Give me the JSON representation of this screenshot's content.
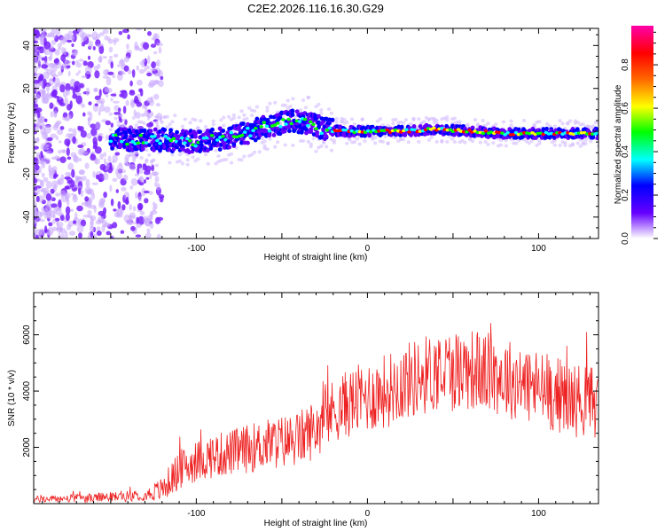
{
  "title": "C2E2.2026.116.16.30.G29",
  "chart_data": [
    {
      "type": "heatmap",
      "name": "spectrogram",
      "xlabel": "Height of straight line (km)",
      "ylabel": "Frequency (Hz)",
      "xlim": [
        -195,
        135
      ],
      "ylim": [
        -50,
        48
      ],
      "x_ticks": [
        -100,
        0,
        100
      ],
      "x_tick_labels": [
        "-100",
        "0",
        "100"
      ],
      "y_ticks": [
        -40,
        -20,
        0,
        20,
        40
      ],
      "y_tick_labels": [
        "-40",
        "-20",
        "0",
        "20",
        "40"
      ],
      "ridge": {
        "x": [
          -160,
          -140,
          -120,
          -100,
          -80,
          -60,
          -45,
          -35,
          -25,
          -15,
          0,
          20,
          40,
          60,
          80,
          100,
          120,
          135
        ],
        "y": [
          -3,
          -4,
          -4,
          -5,
          -3,
          2,
          5,
          4,
          1,
          0,
          0,
          0,
          1,
          0,
          -1,
          -1,
          -1,
          -1
        ]
      },
      "colorbar": {
        "label": "Normalized spectral amplitude",
        "range": [
          0.0,
          0.98
        ],
        "ticks": [
          0.0,
          0.2,
          0.4,
          0.6,
          0.8
        ],
        "tick_labels": [
          "0.0",
          "0.2",
          "0.4",
          "0.6",
          "0.8"
        ],
        "colors": [
          "#ffffff",
          "#6600ff",
          "#0000ff",
          "#00ffff",
          "#00ff00",
          "#ffff00",
          "#ff6600",
          "#ff0000",
          "#ff00aa"
        ]
      }
    },
    {
      "type": "line",
      "name": "snr",
      "xlabel": "Height of straight line (km)",
      "ylabel": "SNR (10 * v/v)",
      "xlim": [
        -195,
        135
      ],
      "ylim": [
        0,
        7500
      ],
      "x_ticks": [
        -100,
        0,
        100
      ],
      "x_tick_labels": [
        "-100",
        "0",
        "100"
      ],
      "y_ticks": [
        2000,
        4000,
        6000
      ],
      "y_tick_labels": [
        "2000",
        "4000",
        "6000"
      ],
      "color": "#ee2222",
      "envelope": {
        "x": [
          -195,
          -160,
          -130,
          -120,
          -110,
          -100,
          -90,
          -80,
          -60,
          -40,
          -30,
          -20,
          -10,
          0,
          10,
          20,
          40,
          60,
          80,
          100,
          120,
          135
        ],
        "y": [
          150,
          200,
          300,
          500,
          1200,
          1500,
          1700,
          1800,
          2100,
          2300,
          2700,
          3300,
          3600,
          3800,
          4000,
          4300,
          4700,
          4800,
          4500,
          4100,
          3700,
          3600
        ]
      },
      "noise": {
        "x": [
          -195,
          -130,
          -110,
          -40,
          0,
          50,
          100,
          135
        ],
        "amp": [
          120,
          200,
          700,
          1000,
          1300,
          1500,
          1400,
          1300
        ]
      }
    }
  ]
}
